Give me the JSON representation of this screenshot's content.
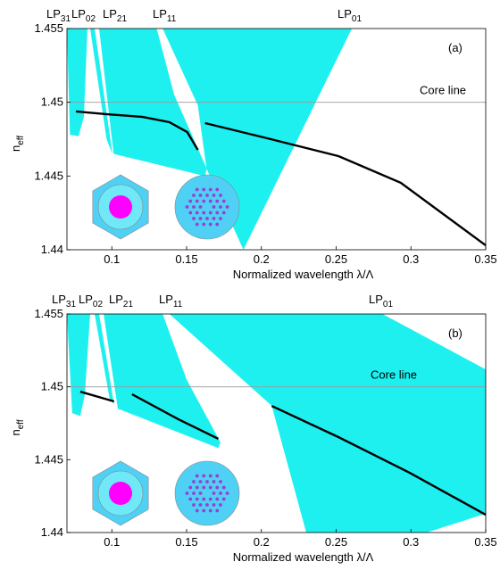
{
  "chart_data": [
    {
      "type": "line",
      "panel_label": "(a)",
      "xlabel": "Normalized wavelength λ/Λ",
      "ylabel": {
        "base": "n",
        "sub": "eff"
      },
      "xlim": [
        0.07,
        0.35
      ],
      "ylim": [
        1.44,
        1.455
      ],
      "xticks": [
        0.1,
        0.15,
        0.2,
        0.25,
        0.3,
        0.35
      ],
      "yticks": [
        1.44,
        1.445,
        1.45,
        1.455
      ],
      "core_line": {
        "label": "Core line",
        "value": 1.45
      },
      "mode_labels": [
        {
          "base": "LP",
          "sub": "31"
        },
        {
          "base": "LP",
          "sub": "02"
        },
        {
          "base": "LP",
          "sub": "21"
        },
        {
          "base": "LP",
          "sub": "11"
        },
        {
          "base": "LP",
          "sub": "01"
        }
      ],
      "band_color": "#1ef0f0",
      "bands": [
        {
          "x": [
            0.07,
            0.0837,
            0.0813,
            0.0777,
            0.072
          ],
          "y": [
            1.455,
            1.455,
            1.449,
            1.4477,
            1.4478
          ]
        },
        {
          "x": [
            0.0855,
            0.0885,
            0.1004,
            0.0965
          ],
          "y": [
            1.455,
            1.455,
            1.4465,
            1.4475
          ]
        },
        {
          "x": [
            0.0915,
            0.13,
            0.1417,
            0.1635,
            0.1623,
            0.1012
          ],
          "y": [
            1.455,
            1.455,
            1.4505,
            1.4455,
            1.445,
            1.4465
          ]
        },
        {
          "x": [
            0.134,
            0.2605,
            0.188,
            0.1633,
            0.1575
          ],
          "y": [
            1.455,
            1.455,
            1.44,
            1.4455,
            1.4498
          ]
        }
      ],
      "series": [
        {
          "color": "#000000",
          "x": [
            0.076,
            0.0968,
            0.1206,
            0.1385,
            0.1504,
            0.1575
          ],
          "values": [
            1.44938,
            1.44919,
            1.44901,
            1.44865,
            1.44798,
            1.44677
          ]
        },
        {
          "color": "#000000",
          "x": [
            0.1623,
            0.2039,
            0.2515,
            0.2932,
            0.35
          ],
          "values": [
            1.44859,
            1.44756,
            1.44635,
            1.44454,
            1.4403
          ]
        }
      ]
    },
    {
      "type": "line",
      "panel_label": "(b)",
      "xlabel": "Normalized wavelength λ/Λ",
      "ylabel": {
        "base": "n",
        "sub": "eff"
      },
      "xlim": [
        0.07,
        0.35
      ],
      "ylim": [
        1.44,
        1.455
      ],
      "xticks": [
        0.1,
        0.15,
        0.2,
        0.25,
        0.3,
        0.35
      ],
      "yticks": [
        1.44,
        1.445,
        1.45,
        1.455
      ],
      "core_line": {
        "label": "Core line",
        "value": 1.45
      },
      "mode_labels": [
        {
          "base": "LP",
          "sub": "31"
        },
        {
          "base": "LP",
          "sub": "02"
        },
        {
          "base": "LP",
          "sub": "21"
        },
        {
          "base": "LP",
          "sub": "11"
        },
        {
          "base": "LP",
          "sub": "01"
        }
      ],
      "band_color": "#1ef0f0",
      "bands": [
        {
          "x": [
            0.07,
            0.0855,
            0.082,
            0.0789,
            0.0735
          ],
          "y": [
            1.455,
            1.455,
            1.4495,
            1.448,
            1.4482
          ]
        },
        {
          "x": [
            0.0885,
            0.0915,
            0.1015,
            0.0985
          ],
          "y": [
            1.455,
            1.455,
            1.4488,
            1.4492
          ]
        },
        {
          "x": [
            0.0945,
            0.134,
            0.15,
            0.1726,
            0.1712,
            0.104
          ],
          "y": [
            1.455,
            1.455,
            1.4505,
            1.4462,
            1.4458,
            1.4485
          ]
        },
        {
          "x": [
            0.1385,
            0.281,
            0.35,
            0.35,
            0.3105,
            0.23,
            0.2069
          ],
          "y": [
            1.455,
            1.455,
            1.4512,
            1.4413,
            1.44,
            1.44,
            1.4487
          ]
        }
      ],
      "series": [
        {
          "color": "#000000",
          "x": [
            0.0789,
            0.1015
          ],
          "values": [
            1.44967,
            1.449
          ]
        },
        {
          "color": "#000000",
          "x": [
            0.1135,
            0.1444,
            0.1712
          ],
          "values": [
            1.44949,
            1.44778,
            1.44643
          ]
        },
        {
          "color": "#000000",
          "x": [
            0.2069,
            0.2515,
            0.2992,
            0.35
          ],
          "values": [
            1.44869,
            1.44655,
            1.4441,
            1.44122
          ]
        }
      ]
    }
  ]
}
